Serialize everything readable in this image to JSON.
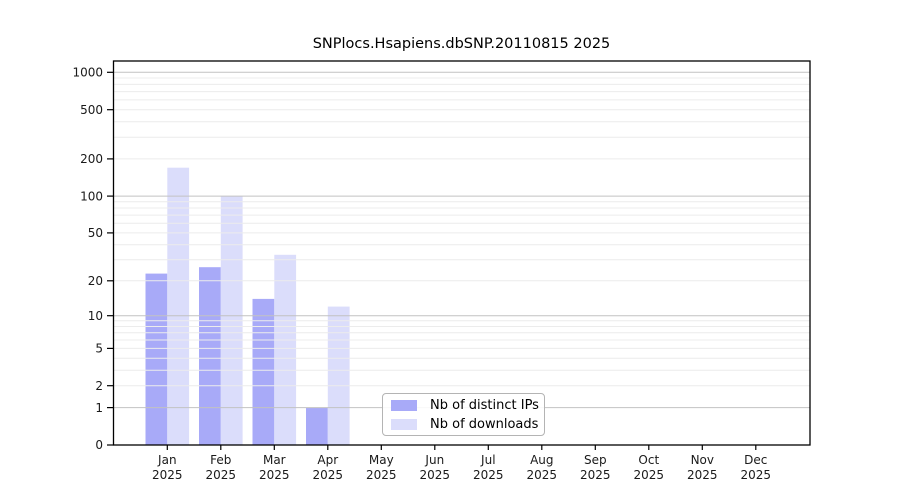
{
  "chart_data": {
    "type": "bar",
    "title": "SNPlocs.Hsapiens.dbSNP.20110815 2025",
    "categories": [
      "Jan",
      "Feb",
      "Mar",
      "Apr",
      "May",
      "Jun",
      "Jul",
      "Aug",
      "Sep",
      "Oct",
      "Nov",
      "Dec"
    ],
    "year_label": "2025",
    "series": [
      {
        "name": "Nb of distinct IPs",
        "color": "#a8aaf8",
        "values": [
          23,
          26,
          14,
          1,
          0,
          0,
          0,
          0,
          0,
          0,
          0,
          0
        ]
      },
      {
        "name": "Nb of downloads",
        "color": "#dbddfb",
        "values": [
          170,
          100,
          33,
          12,
          0,
          0,
          0,
          0,
          0,
          0,
          0,
          0
        ]
      }
    ],
    "y_axis": {
      "scale": "log1p",
      "tick_labels": [
        "1000",
        "500",
        "200",
        "100",
        "50",
        "20",
        "10",
        "5",
        "2",
        "1",
        "0"
      ],
      "tick_values": [
        1000,
        500,
        200,
        100,
        50,
        20,
        10,
        5,
        2,
        1,
        0
      ],
      "major_gridlines": [
        1,
        10,
        100,
        1000
      ],
      "minor_gridlines": [
        2,
        3,
        4,
        5,
        6,
        7,
        8,
        9,
        20,
        30,
        40,
        50,
        60,
        70,
        80,
        90,
        200,
        300,
        400,
        500,
        600,
        700,
        800,
        900
      ],
      "ylim": [
        0,
        1230
      ]
    },
    "legend_position": "bottom-center",
    "grid": "on",
    "colors": {
      "grid_major": "#c2c2c2",
      "grid_minor": "#ececec",
      "axis": "#000000",
      "text": "#1a1a1a",
      "background": "#ffffff"
    }
  }
}
